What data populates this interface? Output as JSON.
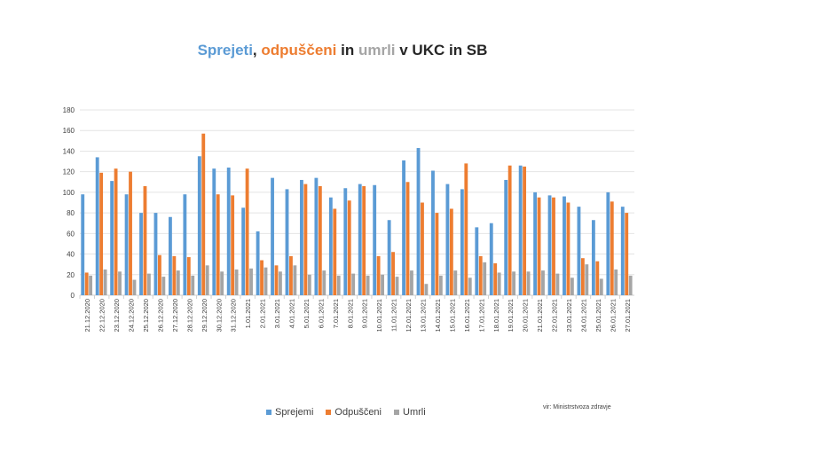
{
  "chart_data": {
    "type": "bar",
    "title_parts": [
      {
        "text": "Sprejeti",
        "color": "#5B9BD5"
      },
      {
        "text": ", ",
        "color": "#262626"
      },
      {
        "text": "odpuščeni",
        "color": "#ED7D31"
      },
      {
        "text": " in ",
        "color": "#262626"
      },
      {
        "text": "umrli",
        "color": "#A5A5A5"
      },
      {
        "text": " v UKC in SB",
        "color": "#262626"
      }
    ],
    "categories": [
      "21.12.2020",
      "22.12.2020",
      "23.12.2020",
      "24.12.2020",
      "25.12.2020",
      "26.12.2020",
      "27.12.2020",
      "28.12.2020",
      "29.12.2020",
      "30.12.2020",
      "31.12.2020",
      "1.01.2021",
      "2.01.2021",
      "3.01.2021",
      "4.01.2021",
      "5.01.2021",
      "6.01.2021",
      "7.01.2021",
      "8.01.2021",
      "9.01.2021",
      "10.01.2021",
      "11.01.2021",
      "12.01.2021",
      "13.01.2021",
      "14.01.2021",
      "15.01.2021",
      "16.01.2021",
      "17.01.2021",
      "18.01.2021",
      "19.01.2021",
      "20.01.2021",
      "21.01.2021",
      "22.01.2021",
      "23.01.2021",
      "24.01.2021",
      "25.01.2021",
      "26.01.2021",
      "27.01.2021"
    ],
    "series": [
      {
        "name": "Sprejemi",
        "color": "#5B9BD5",
        "values": [
          98,
          134,
          111,
          98,
          80,
          80,
          76,
          98,
          135,
          123,
          124,
          85,
          62,
          114,
          103,
          112,
          114,
          95,
          104,
          108,
          107,
          73,
          131,
          143,
          121,
          108,
          103,
          66,
          70,
          112,
          126,
          100,
          97,
          96,
          86,
          73,
          100,
          86
        ]
      },
      {
        "name": "Odpuščeni",
        "color": "#ED7D31",
        "values": [
          22,
          119,
          123,
          120,
          106,
          39,
          38,
          37,
          157,
          98,
          97,
          123,
          34,
          29,
          38,
          108,
          106,
          84,
          92,
          106,
          38,
          42,
          110,
          90,
          80,
          84,
          128,
          38,
          31,
          126,
          125,
          95,
          95,
          90,
          36,
          33,
          91,
          80
        ]
      },
      {
        "name": "Umrli",
        "color": "#A5A5A5",
        "values": [
          19,
          25,
          23,
          15,
          21,
          18,
          24,
          19,
          29,
          23,
          25,
          26,
          27,
          23,
          29,
          20,
          24,
          19,
          21,
          19,
          20,
          18,
          24,
          11,
          19,
          24,
          17,
          32,
          22,
          23,
          23,
          24,
          21,
          17,
          30,
          16,
          25,
          19
        ]
      }
    ],
    "ylim": [
      0,
      180
    ],
    "yticks": [
      0,
      20,
      40,
      60,
      80,
      100,
      120,
      140,
      160,
      180
    ],
    "grid": true,
    "legend": "bottom"
  },
  "source": "vir: Ministrstvoza zdravje"
}
